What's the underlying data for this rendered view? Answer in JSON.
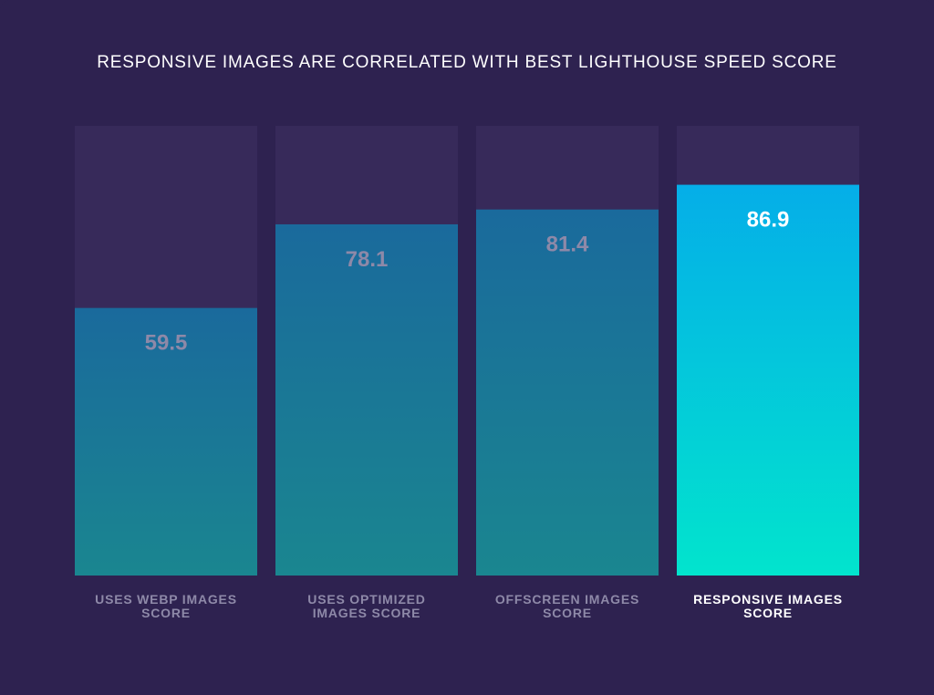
{
  "chart_data": {
    "type": "bar",
    "title": "RESPONSIVE IMAGES ARE CORRELATED WITH BEST LIGHTHOUSE SPEED SCORE",
    "xlabel": "",
    "ylabel": "",
    "ylim": [
      0,
      100
    ],
    "grid": false,
    "legend": "none",
    "categories": [
      "USES WEBP IMAGES\nSCORE",
      "USES OPTIMIZED\nIMAGES SCORE",
      "OFFSCREEN IMAGES\nSCORE",
      "RESPONSIVE IMAGES\nSCORE"
    ],
    "values": [
      59.5,
      78.1,
      81.4,
      86.9
    ],
    "value_labels": [
      "59.5",
      "78.1",
      "81.4",
      "86.9"
    ],
    "highlight_index": 3
  },
  "colors": {
    "background": "#2e2250",
    "track": "#372a5a",
    "bar_top": "#1a6a9c",
    "bar_bottom": "#1a8690",
    "highlight_top": "#05aee8",
    "highlight_bottom": "#02e4cd",
    "label_muted": "#8e89a8",
    "label_highlight": "#ffffff",
    "title": "#ffffff"
  }
}
